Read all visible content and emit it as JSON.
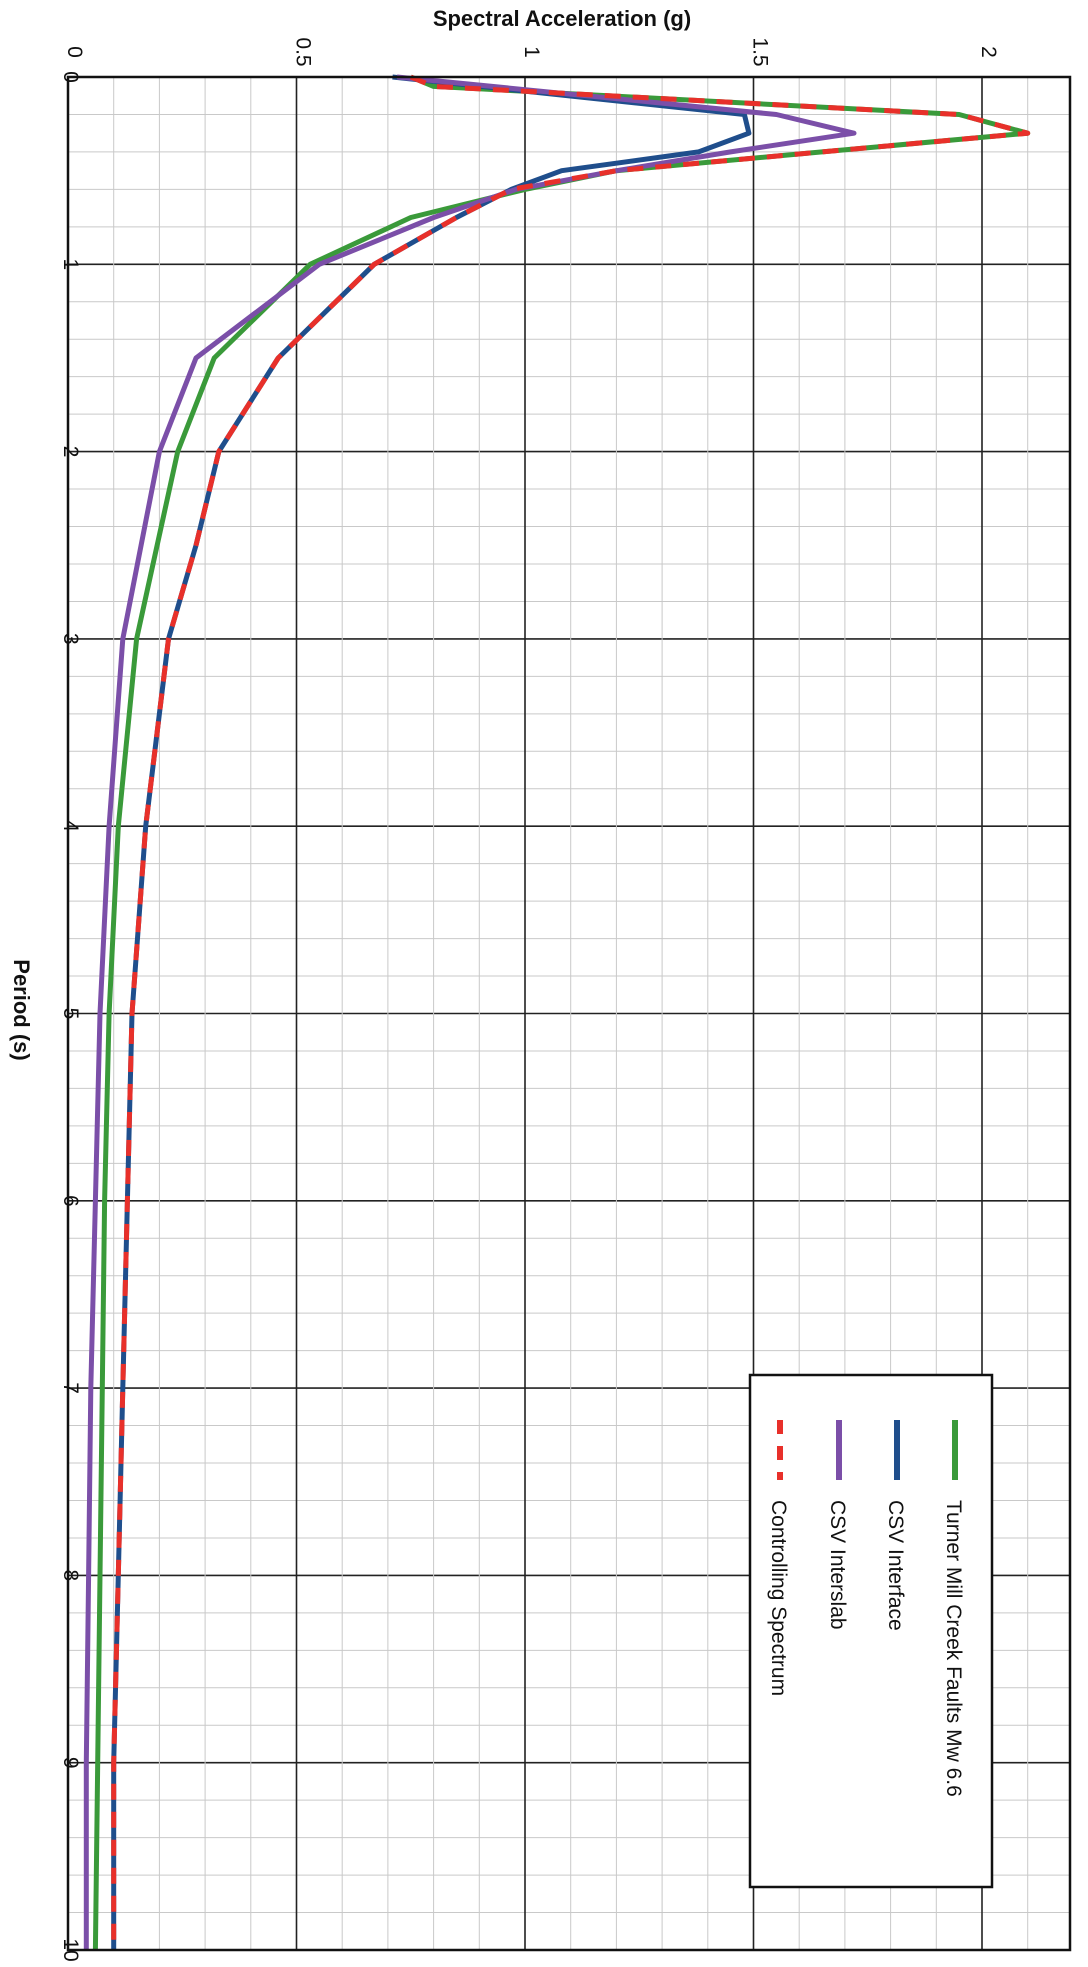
{
  "chart_data": {
    "type": "line",
    "orientation": "rotated-90-clockwise",
    "xlabel": "Period (s)",
    "ylabel": "Spectral Acceleration (g)",
    "xlim": [
      0,
      10
    ],
    "ylim": [
      0,
      2.2
    ],
    "x_ticks": [
      "0",
      "1",
      "2",
      "3",
      "4",
      "5",
      "6",
      "7",
      "8",
      "9",
      "10"
    ],
    "y_ticks": [
      "0",
      "0.5",
      "1",
      "1.5",
      "2"
    ],
    "grid": true,
    "legend_position": "bottom-right",
    "series": [
      {
        "name": "Turner Mill Creek Faults Mw 6.6",
        "color": "#3a9a3a",
        "style": "solid",
        "x": [
          0,
          0.05,
          0.2,
          0.3,
          0.4,
          0.5,
          0.6,
          0.75,
          1.0,
          1.5,
          2.0,
          3.0,
          4.0,
          5.0,
          6.0,
          7.0,
          8.0,
          9.0,
          10.0
        ],
        "y": [
          0.75,
          0.8,
          1.95,
          2.1,
          1.65,
          1.2,
          1.0,
          0.75,
          0.53,
          0.32,
          0.24,
          0.15,
          0.11,
          0.09,
          0.08,
          0.075,
          0.07,
          0.065,
          0.06
        ]
      },
      {
        "name": "CSV Interface",
        "color": "#1f4e8c",
        "style": "solid",
        "x": [
          0,
          0.2,
          0.3,
          0.4,
          0.5,
          0.6,
          0.75,
          1.0,
          1.5,
          2.0,
          2.5,
          3.0,
          4.0,
          5.0,
          6.0,
          7.0,
          8.0,
          9.0,
          10.0
        ],
        "y": [
          0.71,
          1.48,
          1.49,
          1.38,
          1.08,
          0.97,
          0.85,
          0.67,
          0.46,
          0.33,
          0.28,
          0.22,
          0.17,
          0.14,
          0.13,
          0.12,
          0.11,
          0.1,
          0.1
        ]
      },
      {
        "name": "CSV Interslab",
        "color": "#7b4fa8",
        "style": "solid",
        "x": [
          0,
          0.2,
          0.3,
          0.4,
          0.5,
          0.6,
          0.75,
          1.0,
          1.5,
          2.0,
          3.0,
          4.0,
          5.0,
          6.0,
          7.0,
          8.0,
          9.0,
          10.0
        ],
        "y": [
          0.72,
          1.55,
          1.72,
          1.45,
          1.2,
          0.98,
          0.8,
          0.55,
          0.28,
          0.2,
          0.12,
          0.09,
          0.07,
          0.06,
          0.05,
          0.045,
          0.04,
          0.04
        ]
      },
      {
        "name": "Controlling Spectrum",
        "color": "#e8302a",
        "style": "dashed",
        "x": [
          0,
          0.05,
          0.2,
          0.3,
          0.4,
          0.5,
          0.6,
          0.75,
          1.0,
          1.5,
          2.0,
          2.5,
          3.0,
          4.0,
          5.0,
          6.0,
          7.0,
          8.0,
          9.0,
          10.0
        ],
        "y": [
          0.75,
          0.8,
          1.95,
          2.1,
          1.65,
          1.2,
          0.97,
          0.85,
          0.67,
          0.46,
          0.33,
          0.28,
          0.22,
          0.17,
          0.14,
          0.13,
          0.12,
          0.11,
          0.1,
          0.1
        ]
      }
    ]
  }
}
